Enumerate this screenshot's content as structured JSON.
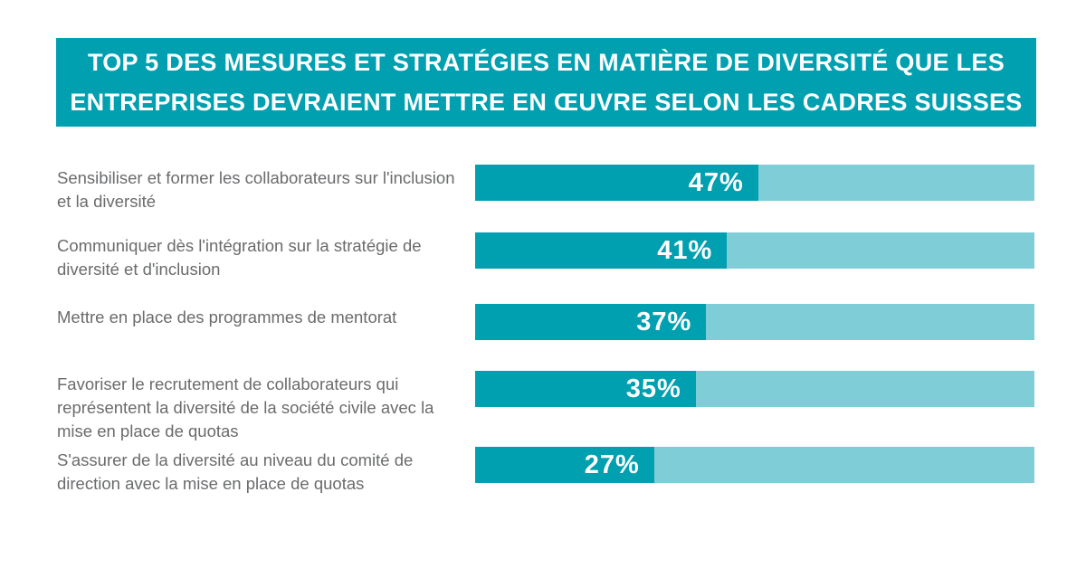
{
  "header": {
    "title_line1": "TOP 5 DES MESURES ET STRATÉGIES EN MATIÈRE DE DIVERSITÉ QUE LES",
    "title_line2": "ENTREPRISES DEVRAIENT METTRE EN ŒUVRE SELON LES CADRES SUISSES",
    "background_color": "#00A0B0",
    "text_color": "#FFFFFF"
  },
  "chart_data": {
    "type": "bar",
    "orientation": "horizontal",
    "title": "TOP 5 DES MESURES ET STRATÉGIES EN MATIÈRE DE DIVERSITÉ QUE LES ENTREPRISES DEVRAIENT METTRE EN ŒUVRE SELON LES CADRES SUISSES",
    "categories": [
      "Sensibiliser et former les collaborateurs sur l'inclusion et la diversité",
      "Communiquer dès l'intégration sur la stratégie de diversité et d'inclusion",
      "Mettre en place des programmes de mentorat",
      "Favoriser le recrutement de collaborateurs qui représentent la diversité de la société civile avec la mise en place de quotas",
      "S'assurer de la diversité au niveau du comité de direction avec la mise en place de quotas"
    ],
    "values": [
      47,
      41,
      37,
      35,
      27
    ],
    "value_labels": [
      "47%",
      "41%",
      "37%",
      "35%",
      "27%"
    ],
    "unit": "%",
    "xlim": [
      0,
      100
    ],
    "colors": {
      "bar_fill": "#00A0B0",
      "bar_track": "#7FCED7",
      "label_text": "#6A6B6D",
      "value_text": "#FFFFFF"
    },
    "layout_hints": {
      "legend": "none",
      "grid": false,
      "axis_ticks": "none",
      "value_label_position": "inside-right-of-fill",
      "fill_offset_fraction": 0.069,
      "fill_per_value_fraction": 0.0093
    }
  }
}
